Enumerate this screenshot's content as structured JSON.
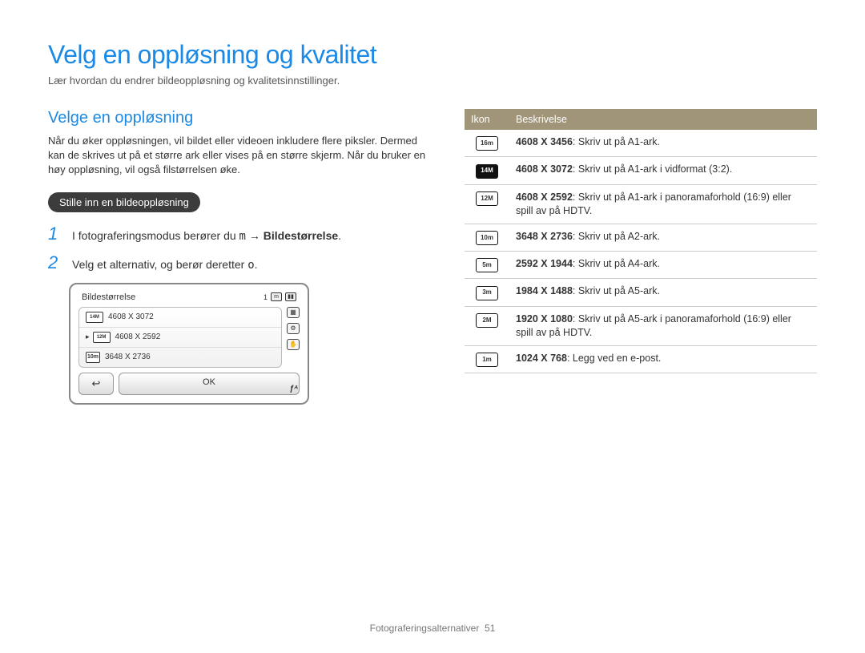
{
  "title": "Velg en oppløsning og kvalitet",
  "subtitle": "Lær hvordan du endrer bildeoppløsning og kvalitetsinnstillinger.",
  "left": {
    "heading": "Velge en oppløsning",
    "body": "Når du øker oppløsningen, vil bildet eller videoen inkludere flere piksler. Dermed kan de skrives ut på et større ark eller vises på en større skjerm. Når du bruker en høy oppløsning, vil også filstørrelsen øke.",
    "pill": "Stille inn en bildeoppløsning",
    "steps": [
      {
        "num": "1",
        "pre": "I fotograferingsmodus berører du ",
        "glyph": "m",
        "arrow": " → ",
        "bold": "Bildestørrelse",
        "post": "."
      },
      {
        "num": "2",
        "pre": "Velg et alternativ, og berør deretter ",
        "glyph": "o",
        "arrow": "",
        "bold": "",
        "post": "."
      }
    ]
  },
  "camera": {
    "title": "Bildestørrelse",
    "count": "1",
    "rows": [
      {
        "icon": "14M",
        "label": "4608 X 3072",
        "selected": false
      },
      {
        "icon": "12M",
        "label": "4608 X 2592",
        "selected": true
      },
      {
        "icon": "10m",
        "label": "3648 X 2736",
        "selected": false
      }
    ],
    "ok": "OK",
    "flash": "ƒᴬ"
  },
  "table": {
    "headers": [
      "Ikon",
      "Beskrivelse"
    ],
    "rows": [
      {
        "icon": "16m",
        "dark": false,
        "res": "4608 X 3456",
        "desc": ": Skriv ut på A1-ark."
      },
      {
        "icon": "14M",
        "dark": true,
        "res": "4608 X 3072",
        "desc": ": Skriv ut på A1-ark i vidformat (3:2)."
      },
      {
        "icon": "12M",
        "dark": false,
        "res": "4608 X 2592",
        "desc": ": Skriv ut på A1-ark i panoramaforhold (16:9) eller spill av på HDTV."
      },
      {
        "icon": "10m",
        "dark": false,
        "res": "3648 X 2736",
        "desc": ": Skriv ut på A2-ark."
      },
      {
        "icon": "5m",
        "dark": false,
        "res": "2592 X 1944",
        "desc": ": Skriv ut på A4-ark."
      },
      {
        "icon": "3m",
        "dark": false,
        "res": "1984 X 1488",
        "desc": ": Skriv ut på A5-ark."
      },
      {
        "icon": "2M",
        "dark": false,
        "res": "1920 X 1080",
        "desc": ": Skriv ut på A5-ark i panoramaforhold (16:9) eller spill av på HDTV."
      },
      {
        "icon": "1m",
        "dark": false,
        "res": "1024 X 768",
        "desc": ": Legg ved en e-post."
      }
    ]
  },
  "footer": {
    "section": "Fotograferingsalternativer",
    "page": "51"
  },
  "colors": {
    "accent": "#1a8ae6",
    "tableHeader": "#a09479",
    "pill": "#3c3c3c"
  }
}
